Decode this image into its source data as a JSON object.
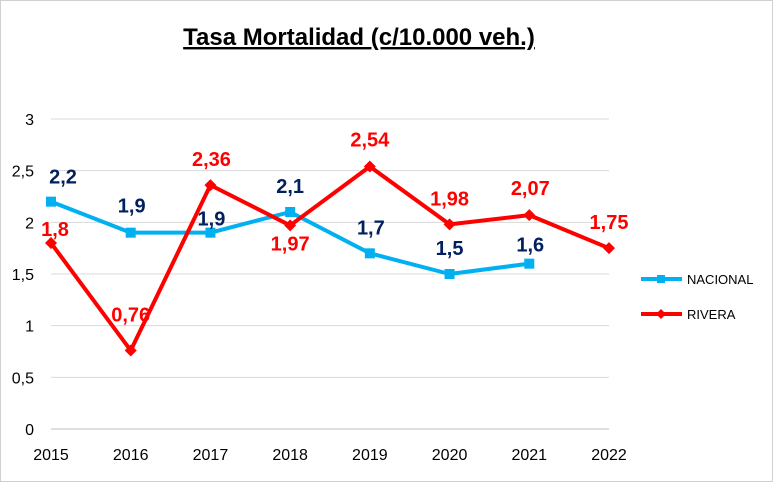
{
  "chart_data": {
    "type": "line",
    "title": "Tasa Mortalidad (c/10.000 veh.)",
    "xlabel": "",
    "ylabel": "",
    "categories": [
      "2015",
      "2016",
      "2017",
      "2018",
      "2019",
      "2020",
      "2021",
      "2022"
    ],
    "ylim": [
      0,
      3
    ],
    "yticks": [
      "0",
      "0,5",
      "1",
      "1,5",
      "2",
      "2,5",
      "3"
    ],
    "grid": true,
    "legend_position": "right",
    "series": [
      {
        "name": "NACIONAL",
        "color": "#00B0F0",
        "label_color": "#002060",
        "marker": "square",
        "values": [
          2.2,
          1.9,
          1.9,
          2.1,
          1.7,
          1.5,
          1.6,
          null
        ],
        "labels": [
          "2,2",
          "1,9",
          "1,9",
          "2,1",
          "1,7",
          "1,5",
          "1,6",
          null
        ]
      },
      {
        "name": "RIVERA",
        "color": "#FF0000",
        "label_color": "#FF0000",
        "marker": "diamond",
        "values": [
          1.8,
          0.76,
          2.36,
          1.97,
          2.54,
          1.98,
          2.07,
          1.75
        ],
        "labels": [
          "1,8",
          "0,76",
          "2,36",
          "1,97",
          "2,54",
          "1,98",
          "2,07",
          "1,75"
        ]
      }
    ]
  }
}
